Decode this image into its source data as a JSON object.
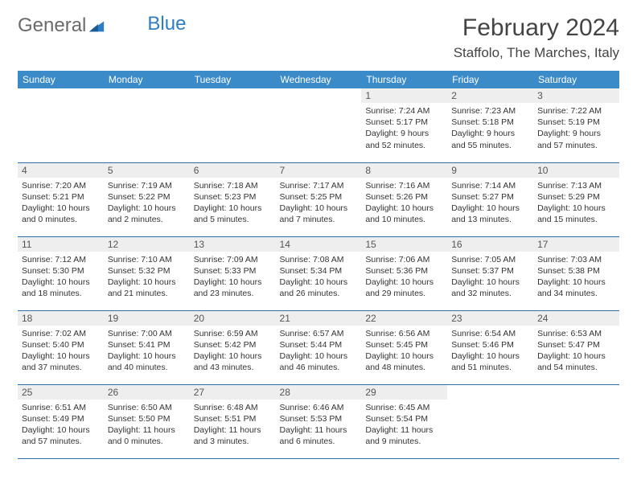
{
  "logo": {
    "text_gray": "General",
    "text_blue": "Blue"
  },
  "title": "February 2024",
  "location": "Staffolo, The Marches, Italy",
  "colors": {
    "header_bg": "#3b8bc9",
    "header_text": "#ffffff",
    "row_border": "#2b6fa8",
    "daynum_bg": "#eeeeee",
    "body_text": "#333333",
    "logo_gray": "#6a6a6a",
    "logo_blue": "#2b7dc4"
  },
  "day_headers": [
    "Sunday",
    "Monday",
    "Tuesday",
    "Wednesday",
    "Thursday",
    "Friday",
    "Saturday"
  ],
  "weeks": [
    [
      {
        "day": "",
        "empty": true
      },
      {
        "day": "",
        "empty": true
      },
      {
        "day": "",
        "empty": true
      },
      {
        "day": "",
        "empty": true
      },
      {
        "day": "1",
        "sunrise": "7:24 AM",
        "sunset": "5:17 PM",
        "daylight": "9 hours and 52 minutes."
      },
      {
        "day": "2",
        "sunrise": "7:23 AM",
        "sunset": "5:18 PM",
        "daylight": "9 hours and 55 minutes."
      },
      {
        "day": "3",
        "sunrise": "7:22 AM",
        "sunset": "5:19 PM",
        "daylight": "9 hours and 57 minutes."
      }
    ],
    [
      {
        "day": "4",
        "sunrise": "7:20 AM",
        "sunset": "5:21 PM",
        "daylight": "10 hours and 0 minutes."
      },
      {
        "day": "5",
        "sunrise": "7:19 AM",
        "sunset": "5:22 PM",
        "daylight": "10 hours and 2 minutes."
      },
      {
        "day": "6",
        "sunrise": "7:18 AM",
        "sunset": "5:23 PM",
        "daylight": "10 hours and 5 minutes."
      },
      {
        "day": "7",
        "sunrise": "7:17 AM",
        "sunset": "5:25 PM",
        "daylight": "10 hours and 7 minutes."
      },
      {
        "day": "8",
        "sunrise": "7:16 AM",
        "sunset": "5:26 PM",
        "daylight": "10 hours and 10 minutes."
      },
      {
        "day": "9",
        "sunrise": "7:14 AM",
        "sunset": "5:27 PM",
        "daylight": "10 hours and 13 minutes."
      },
      {
        "day": "10",
        "sunrise": "7:13 AM",
        "sunset": "5:29 PM",
        "daylight": "10 hours and 15 minutes."
      }
    ],
    [
      {
        "day": "11",
        "sunrise": "7:12 AM",
        "sunset": "5:30 PM",
        "daylight": "10 hours and 18 minutes."
      },
      {
        "day": "12",
        "sunrise": "7:10 AM",
        "sunset": "5:32 PM",
        "daylight": "10 hours and 21 minutes."
      },
      {
        "day": "13",
        "sunrise": "7:09 AM",
        "sunset": "5:33 PM",
        "daylight": "10 hours and 23 minutes."
      },
      {
        "day": "14",
        "sunrise": "7:08 AM",
        "sunset": "5:34 PM",
        "daylight": "10 hours and 26 minutes."
      },
      {
        "day": "15",
        "sunrise": "7:06 AM",
        "sunset": "5:36 PM",
        "daylight": "10 hours and 29 minutes."
      },
      {
        "day": "16",
        "sunrise": "7:05 AM",
        "sunset": "5:37 PM",
        "daylight": "10 hours and 32 minutes."
      },
      {
        "day": "17",
        "sunrise": "7:03 AM",
        "sunset": "5:38 PM",
        "daylight": "10 hours and 34 minutes."
      }
    ],
    [
      {
        "day": "18",
        "sunrise": "7:02 AM",
        "sunset": "5:40 PM",
        "daylight": "10 hours and 37 minutes."
      },
      {
        "day": "19",
        "sunrise": "7:00 AM",
        "sunset": "5:41 PM",
        "daylight": "10 hours and 40 minutes."
      },
      {
        "day": "20",
        "sunrise": "6:59 AM",
        "sunset": "5:42 PM",
        "daylight": "10 hours and 43 minutes."
      },
      {
        "day": "21",
        "sunrise": "6:57 AM",
        "sunset": "5:44 PM",
        "daylight": "10 hours and 46 minutes."
      },
      {
        "day": "22",
        "sunrise": "6:56 AM",
        "sunset": "5:45 PM",
        "daylight": "10 hours and 48 minutes."
      },
      {
        "day": "23",
        "sunrise": "6:54 AM",
        "sunset": "5:46 PM",
        "daylight": "10 hours and 51 minutes."
      },
      {
        "day": "24",
        "sunrise": "6:53 AM",
        "sunset": "5:47 PM",
        "daylight": "10 hours and 54 minutes."
      }
    ],
    [
      {
        "day": "25",
        "sunrise": "6:51 AM",
        "sunset": "5:49 PM",
        "daylight": "10 hours and 57 minutes."
      },
      {
        "day": "26",
        "sunrise": "6:50 AM",
        "sunset": "5:50 PM",
        "daylight": "11 hours and 0 minutes."
      },
      {
        "day": "27",
        "sunrise": "6:48 AM",
        "sunset": "5:51 PM",
        "daylight": "11 hours and 3 minutes."
      },
      {
        "day": "28",
        "sunrise": "6:46 AM",
        "sunset": "5:53 PM",
        "daylight": "11 hours and 6 minutes."
      },
      {
        "day": "29",
        "sunrise": "6:45 AM",
        "sunset": "5:54 PM",
        "daylight": "11 hours and 9 minutes."
      },
      {
        "day": "",
        "empty": true
      },
      {
        "day": "",
        "empty": true
      }
    ]
  ],
  "labels": {
    "sunrise": "Sunrise:",
    "sunset": "Sunset:",
    "daylight": "Daylight:"
  }
}
